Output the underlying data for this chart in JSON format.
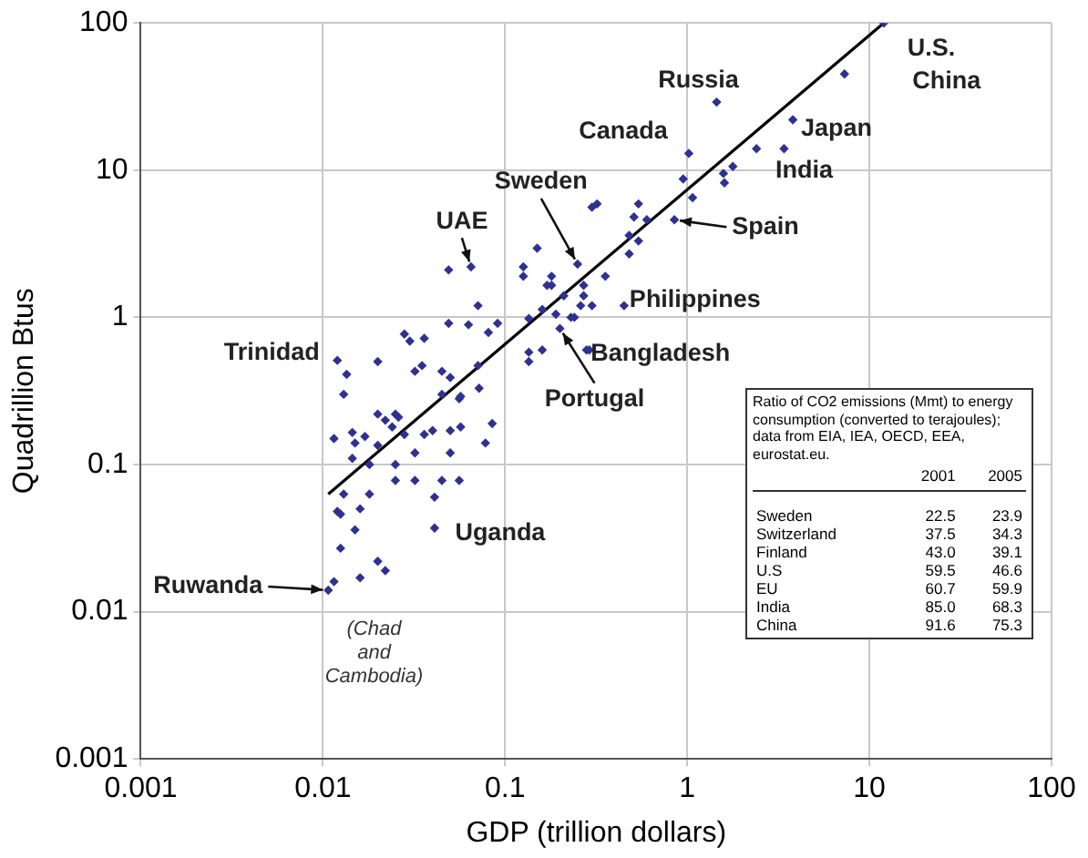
{
  "chart_data": {
    "type": "scatter",
    "xlabel": "GDP (trillion dollars)",
    "ylabel": "Quadrillion Btus",
    "log": "xy",
    "grid": true,
    "legend": false,
    "marker": "diamond",
    "xlim": [
      0.001,
      100
    ],
    "xticks": [
      0.001,
      0.01,
      0.1,
      1,
      10,
      100
    ],
    "ylim": [
      0.001,
      100
    ],
    "yticks": [
      0.001,
      0.01,
      0.1,
      1,
      10,
      100
    ],
    "series": [
      {
        "color": "#2e3192",
        "x": [
          0.012,
          0.0135,
          0.02,
          0.049,
          0.065,
          0.071,
          0.049,
          0.063,
          0.081,
          0.091,
          0.028,
          0.03,
          0.036,
          0.032,
          0.035,
          0.045,
          0.05,
          0.071,
          0.072,
          0.056,
          0.02,
          0.025,
          0.126,
          0.126,
          0.15,
          0.17,
          0.18,
          0.25,
          0.27,
          0.3,
          0.135,
          0.16,
          0.19,
          0.2,
          0.23,
          0.135,
          0.16,
          0.135,
          0.28,
          0.32,
          12,
          7.3,
          3.8,
          2.4,
          3.4,
          1.45,
          1.02,
          0.95,
          1.58,
          1.6,
          1.78,
          1.07,
          0.85,
          0.54,
          0.51,
          0.6,
          0.48,
          0.54,
          0.48,
          0.3,
          0.355,
          0.27,
          0.21,
          0.26,
          0.24,
          0.45,
          0.29,
          0.18,
          0.0115,
          0.0145,
          0.015,
          0.017,
          0.0145,
          0.022,
          0.024,
          0.026,
          0.028,
          0.018,
          0.025,
          0.032,
          0.036,
          0.04,
          0.05,
          0.057,
          0.045,
          0.057,
          0.05,
          0.078,
          0.085,
          0.032,
          0.045,
          0.056,
          0.025,
          0.013,
          0.012,
          0.0125,
          0.016,
          0.015,
          0.018,
          0.041,
          0.041,
          0.0125,
          0.02,
          0.022,
          0.016,
          0.0107,
          0.0115,
          0.013,
          0.02
        ],
        "values": [
          0.51,
          0.41,
          0.5,
          2.1,
          2.2,
          1.2,
          0.91,
          0.89,
          0.79,
          0.91,
          0.77,
          0.69,
          0.72,
          0.43,
          0.47,
          0.43,
          0.39,
          0.47,
          0.33,
          0.28,
          0.22,
          0.22,
          2.2,
          1.9,
          2.95,
          1.65,
          1.9,
          2.3,
          1.4,
          1.2,
          0.98,
          1.13,
          1.05,
          0.84,
          1.0,
          0.58,
          0.6,
          0.5,
          0.6,
          5.9,
          100,
          45,
          22,
          14,
          14,
          29,
          13,
          8.7,
          9.5,
          8.2,
          10.6,
          6.5,
          4.6,
          5.9,
          4.8,
          4.6,
          3.6,
          3.3,
          2.7,
          5.6,
          1.9,
          1.65,
          1.4,
          1.2,
          1.0,
          1.2,
          0.6,
          1.65,
          0.15,
          0.165,
          0.14,
          0.155,
          0.11,
          0.2,
          0.18,
          0.21,
          0.16,
          0.1,
          0.1,
          0.12,
          0.16,
          0.17,
          0.17,
          0.18,
          0.3,
          0.29,
          0.12,
          0.14,
          0.19,
          0.078,
          0.078,
          0.078,
          0.078,
          0.063,
          0.048,
          0.046,
          0.05,
          0.036,
          0.063,
          0.06,
          0.037,
          0.027,
          0.022,
          0.019,
          0.017,
          0.014,
          0.016,
          0.3,
          0.135
        ]
      },
      {
        "type": "line",
        "marker": "none",
        "color": "#000000",
        "x": [
          0.0107,
          12
        ],
        "values": [
          0.063,
          100
        ]
      }
    ],
    "annotations": [
      {
        "text": "U.S.",
        "x": 12,
        "y": 100
      },
      {
        "text": "China",
        "x": 7.3,
        "y": 45
      },
      {
        "text": "Japan",
        "x": 3.8,
        "y": 22
      },
      {
        "text": "India",
        "x": 3.4,
        "y": 14
      },
      {
        "text": "Russia",
        "x": 1.45,
        "y": 29
      },
      {
        "text": "Canada",
        "x": 1.02,
        "y": 13
      },
      {
        "text": "Sweden",
        "x": 0.25,
        "y": 2.3
      },
      {
        "text": "UAE",
        "x": 0.065,
        "y": 2.2
      },
      {
        "text": "Spain",
        "x": 0.85,
        "y": 4.6
      },
      {
        "text": "Philippines",
        "x": 0.45,
        "y": 1.2
      },
      {
        "text": "Bangladesh",
        "x": 0.29,
        "y": 0.6
      },
      {
        "text": "Portugal",
        "x": 0.2,
        "y": 0.84
      },
      {
        "text": "Trinidad",
        "x": 0.012,
        "y": 0.51
      },
      {
        "text": "Uganda",
        "x": 0.041,
        "y": 0.037
      },
      {
        "text": "Ruwanda",
        "x": 0.0107,
        "y": 0.014
      },
      {
        "text": "(Chad and Cambodia)",
        "x": 0.0115,
        "y": 0.016
      },
      "Ratio of CO2 emissions (Mmt) to energy consumption (converted to terajoules); data from EIA, IEA, OECD, EEA, eurostat.eu.",
      "2001 2005",
      "Sweden 22.5 23.9",
      "Switzerland 37.5 34.3",
      "Finland 43.0 39.1",
      "U.S 59.5 46.6",
      "EU 60.7 59.9",
      "India 85.0 68.3",
      "China 91.6 75.3"
    ]
  }
}
